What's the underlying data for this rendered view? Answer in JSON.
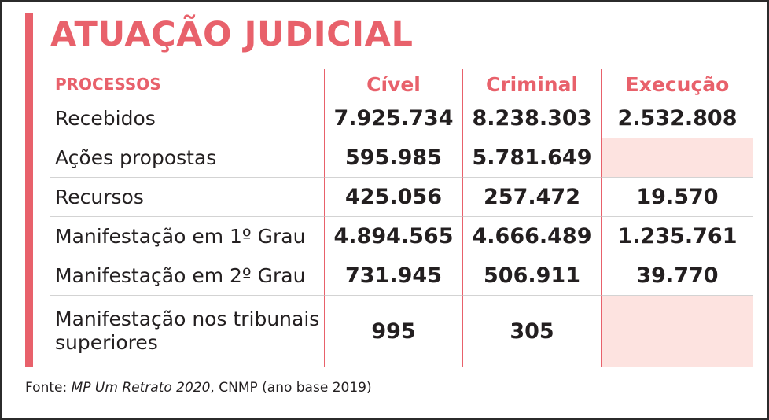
{
  "title": "ATUAÇÃO JUDICIAL",
  "colors": {
    "accent": "#e8616b",
    "empty_cell": "#fde3e0",
    "text": "#231f20"
  },
  "table": {
    "headers": {
      "first": "PROCESSOS",
      "civel": "Cível",
      "criminal": "Criminal",
      "execucao": "Execução"
    },
    "rows": [
      {
        "label": "Recebidos",
        "civel": "7.925.734",
        "criminal": "8.238.303",
        "execucao": "2.532.808"
      },
      {
        "label": "Ações propostas",
        "civel": "595.985",
        "criminal": "5.781.649",
        "execucao": ""
      },
      {
        "label": "Recursos",
        "civel": "425.056",
        "criminal": "257.472",
        "execucao": "19.570"
      },
      {
        "label": "Manifestação em 1º Grau",
        "civel": "4.894.565",
        "criminal": "4.666.489",
        "execucao": "1.235.761"
      },
      {
        "label": "Manifestação em 2º Grau",
        "civel": "731.945",
        "criminal": "506.911",
        "execucao": "39.770"
      },
      {
        "label": "Manifestação nos tribunais superiores",
        "civel": "995",
        "criminal": "305",
        "execucao": ""
      }
    ]
  },
  "source": {
    "prefix": "Fonte: ",
    "publication": "MP Um Retrato 2020",
    "suffix": ", CNMP (ano base 2019)"
  }
}
